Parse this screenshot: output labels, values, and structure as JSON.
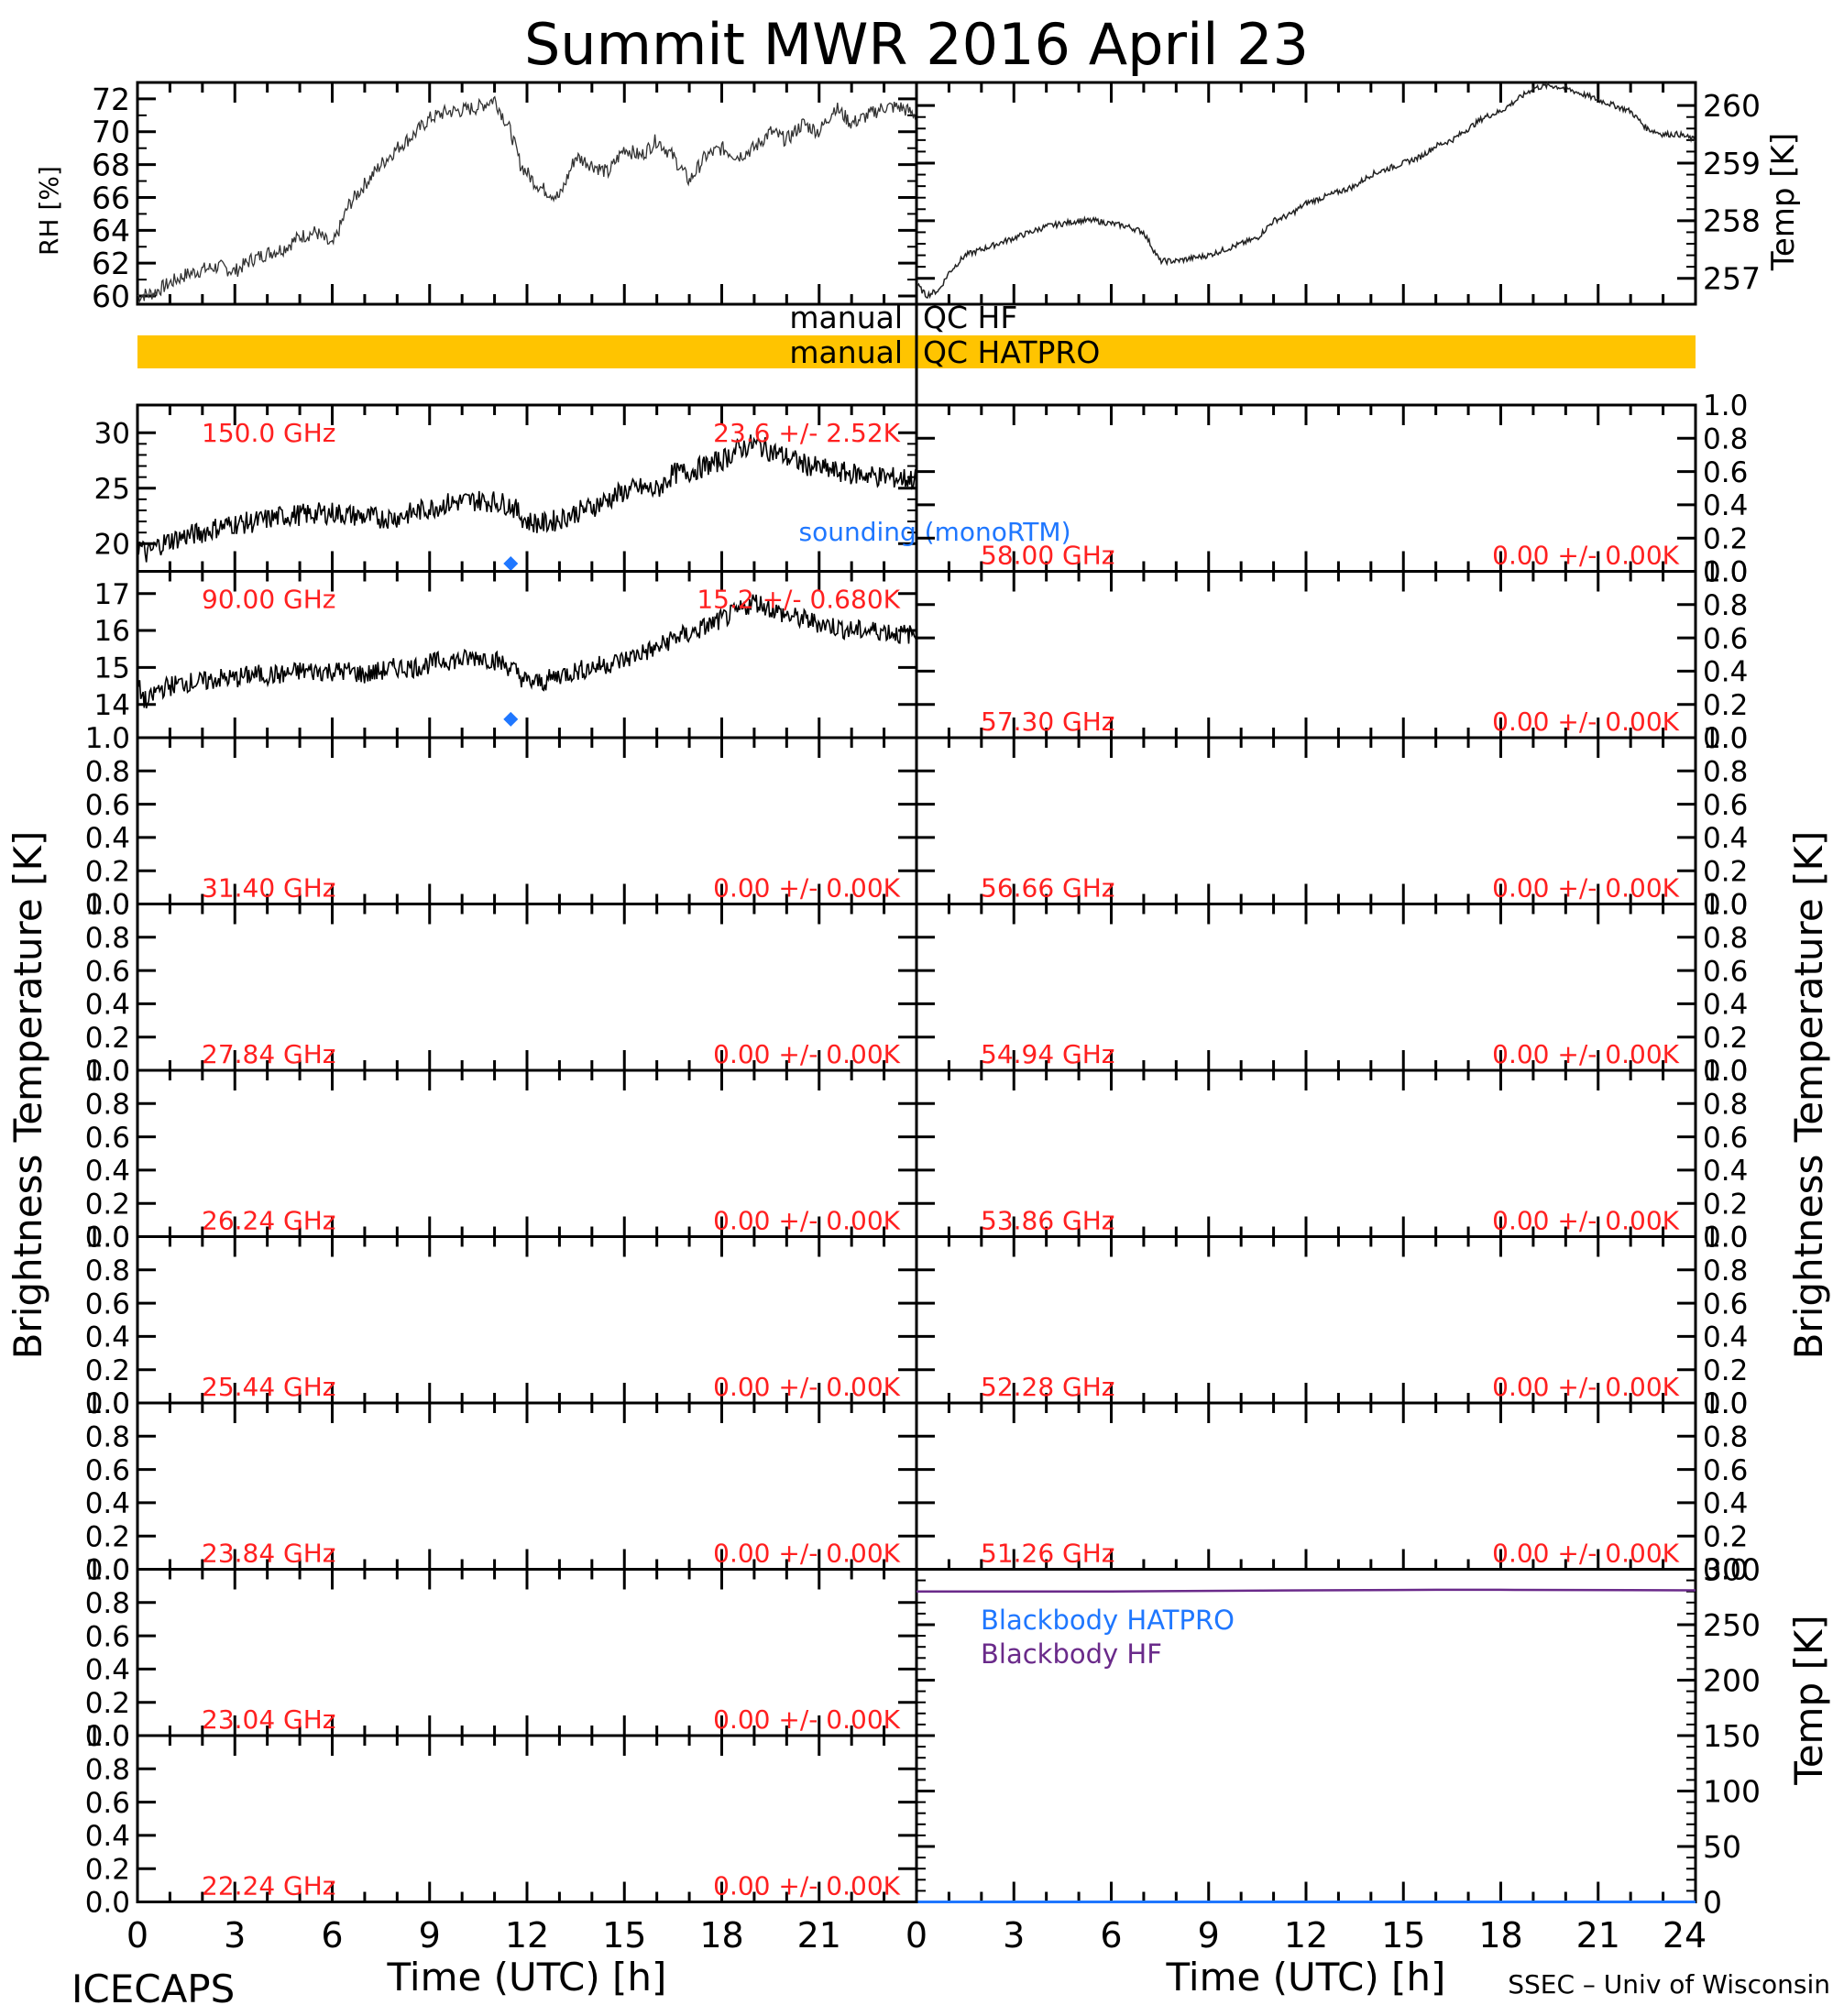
{
  "title": "Summit MWR 2016 April 23",
  "footer": {
    "left": "ICECAPS",
    "right": "SSEC – Univ of Wisconsin"
  },
  "colors": {
    "qc_bar": "#ffc400",
    "channel_label": "#ff2020",
    "sounding": "#1f77ff",
    "blackbody_hatpro": "#1f77ff",
    "blackbody_hf": "#6a2a8a",
    "trace": "#000000"
  },
  "axis_labels": {
    "left_bt": "Brightness Temperature [K]",
    "right_bt": "Brightness Temperature [K]",
    "xlabel_left": "Time (UTC) [h]",
    "xlabel_right": "Time (UTC) [h]"
  },
  "qc": {
    "hf": {
      "left": "manual",
      "right": "QC HF",
      "flagged": false
    },
    "hatpro": {
      "left": "manual",
      "right": "QC HATPRO",
      "flagged": true
    }
  },
  "chart_data": [
    {
      "type": "line",
      "id": "rh",
      "xlabel": "",
      "ylabel": "RH [%]",
      "xlim": [
        0,
        24
      ],
      "ylim": [
        59.5,
        73
      ],
      "yticks": [
        60,
        62,
        64,
        66,
        68,
        70,
        72
      ],
      "series": [
        {
          "x": [
            0,
            0.5,
            1,
            1.5,
            2,
            2.5,
            3,
            3.5,
            4,
            4.5,
            5,
            5.5,
            6,
            6.5,
            7,
            7.5,
            8,
            8.5,
            9,
            9.5,
            10,
            10.5,
            11,
            11.5,
            11.8,
            12.2,
            12.5,
            13,
            13.5,
            14,
            14.5,
            15,
            15.5,
            16,
            16.5,
            17,
            17.5,
            18,
            18.5,
            19,
            19.5,
            20,
            20.5,
            21,
            21.5,
            22,
            22.5,
            23,
            23.5,
            24
          ],
          "y": [
            60.0,
            60.2,
            60.8,
            61.3,
            61.6,
            61.8,
            61.5,
            62.2,
            62.6,
            62.9,
            63.6,
            63.9,
            63.0,
            65.5,
            66.8,
            68.0,
            69.0,
            69.8,
            70.8,
            71.2,
            71.3,
            71.5,
            72.0,
            70.0,
            68.0,
            67.0,
            66.5,
            66.0,
            68.5,
            68.0,
            67.5,
            69.0,
            68.5,
            69.5,
            68.5,
            67.0,
            68.5,
            69.0,
            68.5,
            69.0,
            70.0,
            69.5,
            70.5,
            70.0,
            71.5,
            70.5,
            71.0,
            71.5,
            71.5,
            71.0
          ]
        }
      ]
    },
    {
      "type": "line",
      "id": "temp",
      "xlabel": "",
      "ylabel": "Temp [K]",
      "xlim": [
        0,
        24
      ],
      "ylim": [
        256.55,
        260.4
      ],
      "yticks": [
        257,
        258,
        259,
        260
      ],
      "series": [
        {
          "x": [
            0,
            0.3,
            0.7,
            1,
            1.5,
            2,
            2.5,
            3,
            3.5,
            4,
            4.5,
            5,
            5.5,
            6,
            6.5,
            7,
            7.5,
            8,
            8.5,
            9,
            9.5,
            10,
            10.5,
            11,
            11.5,
            12,
            12.5,
            13,
            13.5,
            14,
            14.5,
            15,
            15.5,
            16,
            16.5,
            17,
            17.5,
            18,
            18.5,
            19,
            19.5,
            20,
            20.5,
            21,
            21.5,
            22,
            22.5,
            23,
            23.5,
            24
          ],
          "y": [
            256.9,
            256.7,
            256.8,
            257.1,
            257.4,
            257.5,
            257.6,
            257.7,
            257.8,
            257.9,
            257.95,
            258.0,
            258.0,
            257.95,
            257.9,
            257.8,
            257.3,
            257.3,
            257.35,
            257.4,
            257.5,
            257.6,
            257.7,
            258.0,
            258.1,
            258.3,
            258.4,
            258.5,
            258.6,
            258.8,
            258.9,
            259.0,
            259.1,
            259.3,
            259.4,
            259.6,
            259.8,
            259.9,
            260.1,
            260.3,
            260.35,
            260.3,
            260.2,
            260.1,
            260.0,
            259.9,
            259.6,
            259.5,
            259.5,
            259.4
          ]
        }
      ]
    },
    {
      "type": "line",
      "id": "ch150",
      "channel": "150.0 GHz",
      "stats": "23.6 +/- 2.52K",
      "ylim": [
        17.5,
        32.5
      ],
      "yticks": [
        20,
        25,
        30
      ],
      "sounding": {
        "label": "sounding (monoRTM)",
        "x": 11.5,
        "y": 18.2
      },
      "series": [
        {
          "x": [
            0,
            0.3,
            0.6,
            1,
            1.5,
            2,
            2.5,
            3,
            3.5,
            4,
            4.5,
            5,
            5.5,
            6,
            6.5,
            7,
            7.5,
            8,
            8.5,
            9,
            9.5,
            10,
            10.5,
            11,
            11.5,
            12,
            12.5,
            13,
            13.5,
            14,
            14.5,
            15,
            15.5,
            16,
            16.5,
            17,
            17.5,
            18,
            18.5,
            19,
            19.5,
            20,
            20.5,
            21,
            21.5,
            22,
            22.5,
            23,
            23.5,
            24
          ],
          "y": [
            20.0,
            19.0,
            19.8,
            20.3,
            20.7,
            21.0,
            21.5,
            21.8,
            21.9,
            22.2,
            22.5,
            22.6,
            22.7,
            22.8,
            22.6,
            22.4,
            22.3,
            22.4,
            22.8,
            23.2,
            23.6,
            23.8,
            23.9,
            23.8,
            23.5,
            22.0,
            21.8,
            22.2,
            22.8,
            23.3,
            24.0,
            24.7,
            25.0,
            24.8,
            26.3,
            26.5,
            27.0,
            27.5,
            28.5,
            29.0,
            28.4,
            27.8,
            27.2,
            26.8,
            26.5,
            26.3,
            26.2,
            26.0,
            25.9,
            25.8
          ]
        }
      ]
    },
    {
      "type": "line",
      "id": "ch58",
      "channel": "58.00 GHz",
      "stats": "0.00 +/- 0.00K",
      "ylim": [
        0,
        1
      ],
      "yticks": [
        0,
        0.2,
        0.4,
        0.6,
        0.8,
        1.0
      ],
      "series": []
    },
    {
      "type": "line",
      "id": "ch90",
      "channel": "90.00 GHz",
      "stats": "15.2 +/- 0.680K",
      "ylim": [
        13.1,
        17.6
      ],
      "yticks": [
        14,
        15,
        16,
        17
      ],
      "sounding": {
        "x": 11.5,
        "y": 13.6
      },
      "series": [
        {
          "x": [
            0,
            0.3,
            0.6,
            1,
            1.5,
            2,
            2.5,
            3,
            3.5,
            4,
            4.5,
            5,
            5.5,
            6,
            6.5,
            7,
            7.5,
            8,
            8.5,
            9,
            9.5,
            10,
            10.5,
            11,
            11.5,
            12,
            12.5,
            13,
            13.5,
            14,
            14.5,
            15,
            15.5,
            16,
            16.5,
            17,
            17.5,
            18,
            18.5,
            19,
            19.5,
            20,
            20.5,
            21,
            21.5,
            22,
            22.5,
            23,
            23.5,
            24
          ],
          "y": [
            14.5,
            14.0,
            14.4,
            14.5,
            14.6,
            14.6,
            14.7,
            14.7,
            14.8,
            14.8,
            14.8,
            14.9,
            14.9,
            14.9,
            14.9,
            14.8,
            14.9,
            15.0,
            15.0,
            15.1,
            15.2,
            15.2,
            15.3,
            15.2,
            15.0,
            14.6,
            14.6,
            14.8,
            14.9,
            15.0,
            15.1,
            15.2,
            15.4,
            15.5,
            15.8,
            15.9,
            16.1,
            16.3,
            16.5,
            16.8,
            16.6,
            16.4,
            16.3,
            16.2,
            16.1,
            16.0,
            16.0,
            16.0,
            15.9,
            15.9
          ]
        }
      ]
    },
    {
      "type": "line",
      "id": "ch5730",
      "channel": "57.30 GHz",
      "stats": "0.00 +/- 0.00K",
      "ylim": [
        0,
        1
      ],
      "yticks": [
        0,
        0.2,
        0.4,
        0.6,
        0.8,
        1.0
      ],
      "series": []
    },
    {
      "type": "line",
      "id": "ch3140",
      "channel": "31.40 GHz",
      "stats": "0.00 +/- 0.00K",
      "ylim": [
        0,
        1
      ],
      "yticks": [
        0,
        0.2,
        0.4,
        0.6,
        0.8,
        1.0
      ],
      "series": []
    },
    {
      "type": "line",
      "id": "ch5666",
      "channel": "56.66 GHz",
      "stats": "0.00 +/- 0.00K",
      "ylim": [
        0,
        1
      ],
      "yticks": [
        0,
        0.2,
        0.4,
        0.6,
        0.8,
        1.0
      ],
      "series": []
    },
    {
      "type": "line",
      "id": "ch2784",
      "channel": "27.84 GHz",
      "stats": "0.00 +/- 0.00K",
      "ylim": [
        0,
        1
      ],
      "yticks": [
        0,
        0.2,
        0.4,
        0.6,
        0.8,
        1.0
      ],
      "series": []
    },
    {
      "type": "line",
      "id": "ch5484",
      "channel": "54.94 GHz",
      "stats": "0.00 +/- 0.00K",
      "ylim": [
        0,
        1
      ],
      "yticks": [
        0,
        0.2,
        0.4,
        0.6,
        0.8,
        1.0
      ],
      "series": []
    },
    {
      "type": "line",
      "id": "ch2624",
      "channel": "26.24 GHz",
      "stats": "0.00 +/- 0.00K",
      "ylim": [
        0,
        1
      ],
      "yticks": [
        0,
        0.2,
        0.4,
        0.6,
        0.8,
        1.0
      ],
      "series": []
    },
    {
      "type": "line",
      "id": "ch5386",
      "channel": "53.86 GHz",
      "stats": "0.00 +/- 0.00K",
      "ylim": [
        0,
        1
      ],
      "yticks": [
        0,
        0.2,
        0.4,
        0.6,
        0.8,
        1.0
      ],
      "series": []
    },
    {
      "type": "line",
      "id": "ch2544",
      "channel": "25.44 GHz",
      "stats": "0.00 +/- 0.00K",
      "ylim": [
        0,
        1
      ],
      "yticks": [
        0,
        0.2,
        0.4,
        0.6,
        0.8,
        1.0
      ],
      "series": []
    },
    {
      "type": "line",
      "id": "ch5228",
      "channel": "52.28 GHz",
      "stats": "0.00 +/- 0.00K",
      "ylim": [
        0,
        1
      ],
      "yticks": [
        0,
        0.2,
        0.4,
        0.6,
        0.8,
        1.0
      ],
      "series": []
    },
    {
      "type": "line",
      "id": "ch2384",
      "channel": "23.84 GHz",
      "stats": "0.00 +/- 0.00K",
      "ylim": [
        0,
        1
      ],
      "yticks": [
        0,
        0.2,
        0.4,
        0.6,
        0.8,
        1.0
      ],
      "series": []
    },
    {
      "type": "line",
      "id": "ch5126",
      "channel": "51.26 GHz",
      "stats": "0.00 +/- 0.00K",
      "ylim": [
        0,
        1
      ],
      "yticks": [
        0,
        0.2,
        0.4,
        0.6,
        0.8,
        1.0
      ],
      "series": []
    },
    {
      "type": "line",
      "id": "ch2304",
      "channel": "23.04 GHz",
      "stats": "0.00 +/- 0.00K",
      "ylim": [
        0,
        1
      ],
      "yticks": [
        0,
        0.2,
        0.4,
        0.6,
        0.8,
        1.0
      ],
      "series": []
    },
    {
      "type": "line",
      "id": "blackbody",
      "ylabel": "Temp [K]",
      "ylim": [
        0,
        300
      ],
      "yticks": [
        0,
        50,
        100,
        150,
        200,
        250,
        300
      ],
      "legend": [
        "Blackbody HATPRO",
        "Blackbody HF"
      ],
      "series": [
        {
          "name": "Blackbody HATPRO",
          "x": [
            0,
            24
          ],
          "y": [
            0,
            0
          ]
        },
        {
          "name": "Blackbody HF",
          "x": [
            0,
            6,
            12,
            16,
            18,
            24
          ],
          "y": [
            280,
            280,
            281,
            281.5,
            281.5,
            281
          ]
        }
      ]
    },
    {
      "type": "line",
      "id": "ch2224",
      "channel": "22.24 GHz",
      "stats": "0.00 +/- 0.00K",
      "ylim": [
        0,
        1
      ],
      "yticks": [
        0,
        0.2,
        0.4,
        0.6,
        0.8,
        1.0
      ],
      "series": []
    }
  ],
  "x_axis": {
    "xlim": [
      0,
      24
    ],
    "ticks": [
      0,
      3,
      6,
      9,
      12,
      15,
      18,
      21,
      24
    ],
    "left_tick_labels": [
      "0",
      "3",
      "6",
      "9",
      "12",
      "15",
      "18",
      "21"
    ],
    "right_tick_labels": [
      "0",
      "3",
      "6",
      "9",
      "12",
      "15",
      "18",
      "21",
      "24"
    ]
  }
}
